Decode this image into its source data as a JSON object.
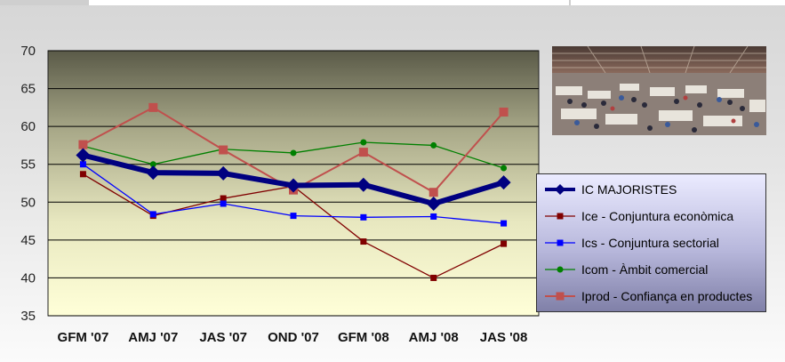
{
  "chart_data": {
    "type": "line",
    "categories": [
      "GFM '07",
      "AMJ '07",
      "JAS '07",
      "OND '07",
      "GFM '08",
      "AMJ '08",
      "JAS '08"
    ],
    "ylim": [
      35,
      70
    ],
    "yticks": [
      "70",
      "65",
      "60",
      "55",
      "50",
      "45",
      "40",
      "35"
    ],
    "grid": true,
    "legend_position": "right",
    "series": [
      {
        "name": "IC MAJORISTES",
        "color": "#000080",
        "marker": "diamond",
        "values": [
          56.2,
          53.9,
          53.8,
          52.2,
          52.3,
          49.8,
          52.6
        ]
      },
      {
        "name": "Ice - Conjuntura econòmica",
        "color": "#800000",
        "marker": "square",
        "values": [
          53.7,
          48.2,
          50.5,
          52.1,
          44.8,
          40.0,
          44.5
        ]
      },
      {
        "name": "Ics - Conjuntura sectorial",
        "color": "#0000ff",
        "marker": "square",
        "values": [
          55.0,
          48.4,
          49.8,
          48.2,
          48.0,
          48.1,
          47.2
        ]
      },
      {
        "name": "Icom - Àmbit comercial",
        "color": "#008000",
        "marker": "circle",
        "values": [
          57.4,
          55.0,
          57.0,
          56.5,
          57.9,
          57.5,
          54.5
        ]
      },
      {
        "name": "Iprod - Confiança en productes",
        "color": "#c0504d",
        "marker": "square",
        "values": [
          57.6,
          62.5,
          56.9,
          51.6,
          56.6,
          51.3,
          61.9
        ]
      }
    ]
  }
}
